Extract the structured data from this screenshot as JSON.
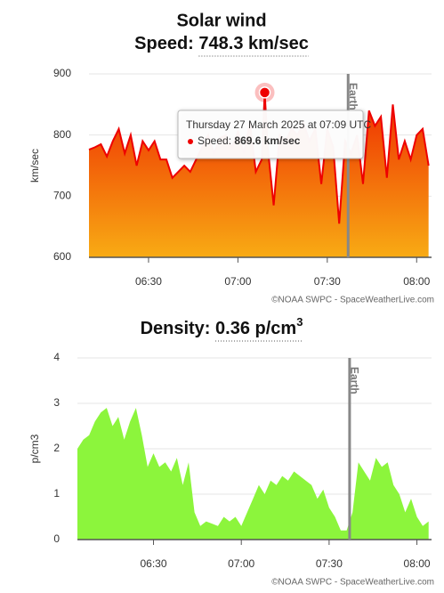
{
  "chart_data": [
    {
      "type": "area",
      "title": "Solar wind",
      "subtitle_label": "Speed:",
      "subtitle_value": "748.3 km/sec",
      "ylabel": "km/sec",
      "x": [
        "06:10",
        "06:12",
        "06:14",
        "06:16",
        "06:18",
        "06:20",
        "06:22",
        "06:24",
        "06:26",
        "06:28",
        "06:30",
        "06:32",
        "06:34",
        "06:36",
        "06:38",
        "06:40",
        "06:42",
        "06:44",
        "06:46",
        "06:48",
        "06:50",
        "06:52",
        "06:54",
        "06:56",
        "06:58",
        "07:00",
        "07:02",
        "07:04",
        "07:06",
        "07:08",
        "07:09",
        "07:10",
        "07:12",
        "07:14",
        "07:16",
        "07:18",
        "07:20",
        "07:22",
        "07:24",
        "07:26",
        "07:28",
        "07:30",
        "07:32",
        "07:34",
        "07:36",
        "07:38",
        "07:40",
        "07:42",
        "07:44",
        "07:46",
        "07:48",
        "07:50",
        "07:52",
        "07:54",
        "07:56",
        "07:58",
        "08:00",
        "08:02",
        "08:04"
      ],
      "values": [
        776,
        780,
        785,
        765,
        790,
        810,
        770,
        800,
        750,
        790,
        775,
        790,
        760,
        760,
        730,
        740,
        750,
        740,
        760,
        780,
        800,
        770,
        795,
        800,
        780,
        805,
        770,
        820,
        740,
        760,
        869.6,
        780,
        685,
        800,
        790,
        810,
        800,
        820,
        790,
        810,
        720,
        810,
        780,
        655,
        790,
        770,
        800,
        720,
        840,
        815,
        830,
        730,
        850,
        760,
        790,
        760,
        800,
        810,
        750
      ],
      "color": "#ee0000",
      "gradient": [
        "#ee2a00",
        "#f8ab14"
      ],
      "xlim": [
        "06:10",
        "08:05"
      ],
      "xticks": [
        "06:30",
        "07:00",
        "07:30",
        "08:00"
      ],
      "ylim": [
        600,
        900
      ],
      "yticks": [
        600,
        700,
        800,
        900
      ],
      "grid": true,
      "annotations": [
        {
          "x": "07:37",
          "text": "Earth"
        }
      ],
      "tooltip": {
        "index": 30,
        "date": "Thursday 27 March 2025 at 07:09 UTC",
        "label": "Speed:",
        "value": "869.6 km/sec"
      },
      "credit": "©NOAA SWPC - SpaceWeatherLive.com"
    },
    {
      "type": "area",
      "subtitle_label": "Density:",
      "subtitle_value": "0.36 p/cm",
      "subtitle_sup": "3",
      "ylabel": "p/cm3",
      "x": [
        "06:04",
        "06:06",
        "06:08",
        "06:10",
        "06:12",
        "06:14",
        "06:16",
        "06:18",
        "06:20",
        "06:22",
        "06:24",
        "06:26",
        "06:28",
        "06:30",
        "06:32",
        "06:34",
        "06:36",
        "06:38",
        "06:40",
        "06:42",
        "06:44",
        "06:46",
        "06:48",
        "06:50",
        "06:52",
        "06:54",
        "06:56",
        "06:58",
        "07:00",
        "07:02",
        "07:04",
        "07:06",
        "07:08",
        "07:10",
        "07:12",
        "07:14",
        "07:16",
        "07:18",
        "07:20",
        "07:22",
        "07:24",
        "07:26",
        "07:28",
        "07:30",
        "07:32",
        "07:34",
        "07:36",
        "07:38",
        "07:40",
        "07:42",
        "07:44",
        "07:46",
        "07:48",
        "07:50",
        "07:52",
        "07:54",
        "07:56",
        "07:58",
        "08:00",
        "08:02",
        "08:04"
      ],
      "values": [
        2.0,
        2.2,
        2.3,
        2.6,
        2.8,
        2.9,
        2.5,
        2.7,
        2.2,
        2.6,
        2.9,
        2.3,
        1.6,
        1.9,
        1.6,
        1.7,
        1.5,
        1.8,
        1.2,
        1.7,
        0.6,
        0.3,
        0.4,
        0.35,
        0.3,
        0.5,
        0.4,
        0.5,
        0.3,
        0.6,
        0.9,
        1.2,
        1.0,
        1.3,
        1.2,
        1.4,
        1.3,
        1.5,
        1.4,
        1.3,
        1.2,
        0.9,
        1.1,
        0.7,
        0.5,
        0.2,
        0.2,
        0.6,
        1.7,
        1.5,
        1.3,
        1.8,
        1.6,
        1.7,
        1.2,
        1.0,
        0.6,
        0.9,
        0.5,
        0.3,
        0.4
      ],
      "color": "#8cf53c",
      "xlim": [
        "06:04",
        "08:05"
      ],
      "xticks": [
        "06:30",
        "07:00",
        "07:30",
        "08:00"
      ],
      "ylim": [
        0,
        4
      ],
      "yticks": [
        0,
        1,
        2,
        3,
        4
      ],
      "grid": true,
      "annotations": [
        {
          "x": "07:37",
          "text": "Earth"
        }
      ],
      "credit": "©NOAA SWPC - SpaceWeatherLive.com"
    }
  ]
}
